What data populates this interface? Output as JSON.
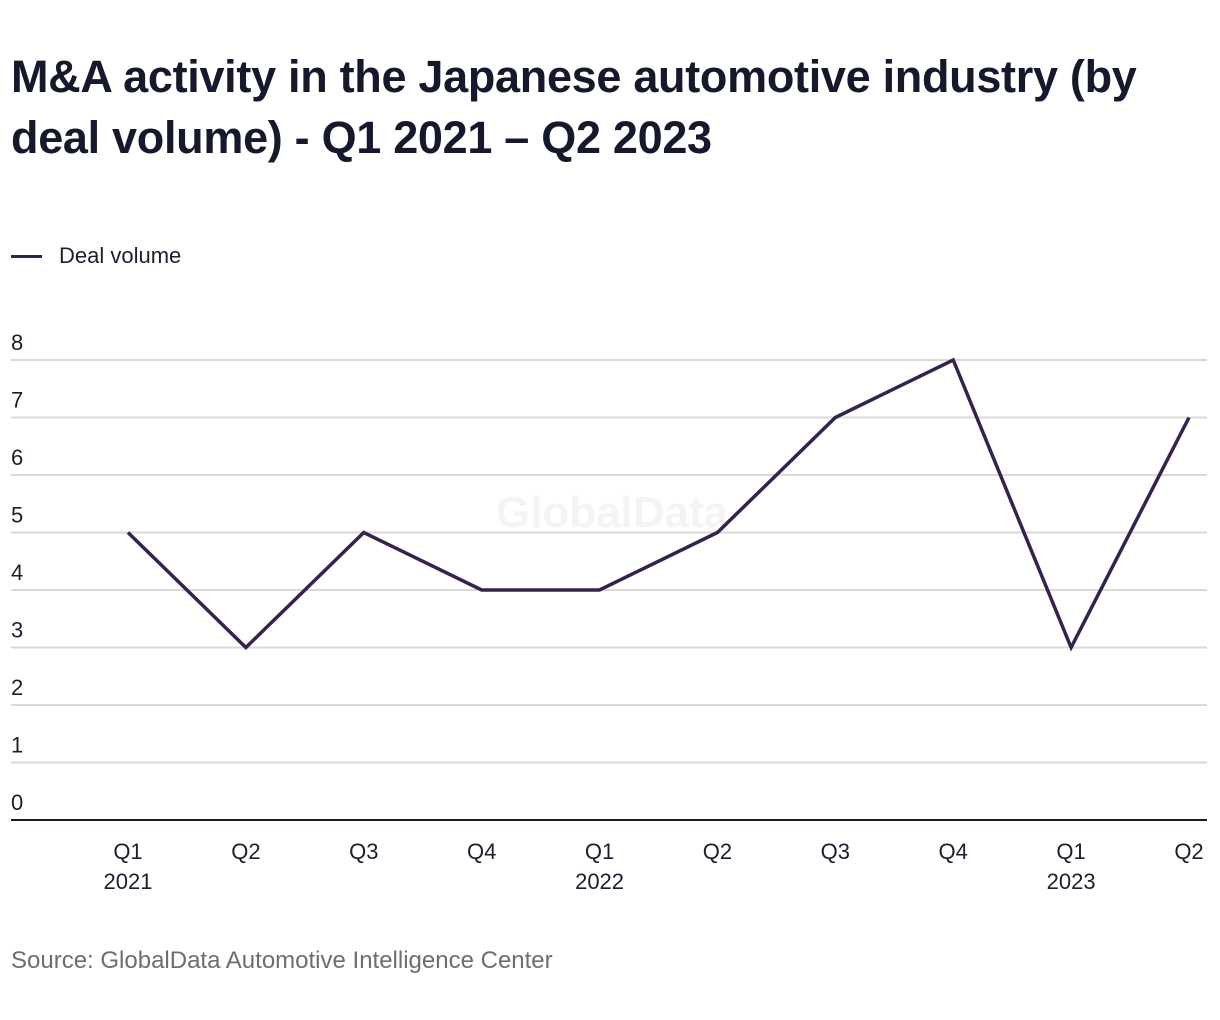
{
  "title": "M&A activity in the Japanese automotive industry (by deal volume) - Q1 2021 – Q2 2023",
  "legend": {
    "label": "Deal volume",
    "color": "#35224f"
  },
  "watermark": "GlobalData",
  "source": "Source: GlobalData Automotive Intelligence Center",
  "chart_data": {
    "type": "line",
    "title": "M&A activity in the Japanese automotive industry (by deal volume) - Q1 2021 – Q2 2023",
    "xlabel": "",
    "ylabel": "",
    "categories": [
      {
        "q": "Q1",
        "year": "2021"
      },
      {
        "q": "Q2",
        "year": ""
      },
      {
        "q": "Q3",
        "year": ""
      },
      {
        "q": "Q4",
        "year": ""
      },
      {
        "q": "Q1",
        "year": "2022"
      },
      {
        "q": "Q2",
        "year": ""
      },
      {
        "q": "Q3",
        "year": ""
      },
      {
        "q": "Q4",
        "year": ""
      },
      {
        "q": "Q1",
        "year": "2023"
      },
      {
        "q": "Q2",
        "year": ""
      }
    ],
    "series": [
      {
        "name": "Deal volume",
        "color": "#35224f",
        "values": [
          5,
          3,
          5,
          4,
          4,
          5,
          7,
          8,
          3,
          7
        ]
      }
    ],
    "ylim": [
      0,
      8
    ],
    "yticks": [
      0,
      1,
      2,
      3,
      4,
      5,
      6,
      7,
      8
    ],
    "grid": true,
    "legend_position": "top-left"
  }
}
